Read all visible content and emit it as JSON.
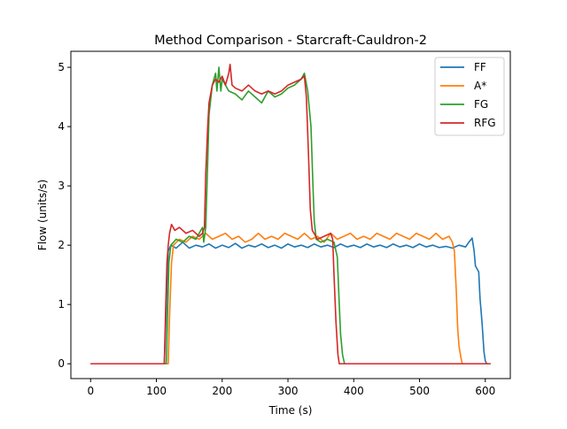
{
  "chart_data": {
    "type": "line",
    "title": "Method Comparison - Starcraft-Cauldron-2",
    "xlabel": "Time (s)",
    "ylabel": "Flow (units/s)",
    "xlim": [
      -30,
      638
    ],
    "ylim": [
      -0.25,
      5.27
    ],
    "xticks": [
      0,
      100,
      200,
      300,
      400,
      500,
      600
    ],
    "yticks": [
      0,
      1,
      2,
      3,
      4,
      5
    ],
    "grid": false,
    "legend_position": "top-right",
    "series": [
      {
        "name": "FF",
        "color": "#1f77b4",
        "points": [
          [
            0,
            0
          ],
          [
            112,
            0
          ],
          [
            114,
            0.6
          ],
          [
            116,
            1.3
          ],
          [
            118,
            1.9
          ],
          [
            122,
            2.0
          ],
          [
            130,
            1.95
          ],
          [
            140,
            2.05
          ],
          [
            150,
            1.95
          ],
          [
            160,
            2.0
          ],
          [
            170,
            1.97
          ],
          [
            180,
            2.02
          ],
          [
            190,
            1.95
          ],
          [
            200,
            2.0
          ],
          [
            210,
            1.96
          ],
          [
            220,
            2.03
          ],
          [
            230,
            1.95
          ],
          [
            240,
            2.0
          ],
          [
            250,
            1.97
          ],
          [
            260,
            2.02
          ],
          [
            270,
            1.96
          ],
          [
            280,
            2.0
          ],
          [
            290,
            1.95
          ],
          [
            300,
            2.02
          ],
          [
            310,
            1.97
          ],
          [
            320,
            2.0
          ],
          [
            330,
            1.96
          ],
          [
            340,
            2.02
          ],
          [
            350,
            1.97
          ],
          [
            360,
            2.0
          ],
          [
            370,
            1.96
          ],
          [
            380,
            2.02
          ],
          [
            390,
            1.97
          ],
          [
            400,
            2.0
          ],
          [
            410,
            1.96
          ],
          [
            420,
            2.02
          ],
          [
            430,
            1.97
          ],
          [
            440,
            2.0
          ],
          [
            450,
            1.96
          ],
          [
            460,
            2.02
          ],
          [
            470,
            1.97
          ],
          [
            480,
            2.0
          ],
          [
            490,
            1.96
          ],
          [
            500,
            2.02
          ],
          [
            510,
            1.97
          ],
          [
            520,
            2.0
          ],
          [
            530,
            1.96
          ],
          [
            540,
            1.98
          ],
          [
            550,
            1.95
          ],
          [
            560,
            2.0
          ],
          [
            570,
            1.97
          ],
          [
            575,
            2.05
          ],
          [
            580,
            2.12
          ],
          [
            583,
            1.9
          ],
          [
            585,
            1.65
          ],
          [
            590,
            1.55
          ],
          [
            592,
            1.1
          ],
          [
            595,
            0.7
          ],
          [
            598,
            0.2
          ],
          [
            600,
            0.05
          ],
          [
            602,
            0
          ],
          [
            608,
            0
          ]
        ]
      },
      {
        "name": "A*",
        "color": "#ff7f0e",
        "points": [
          [
            0,
            0
          ],
          [
            118,
            0
          ],
          [
            120,
            0.8
          ],
          [
            123,
            1.7
          ],
          [
            126,
            2.0
          ],
          [
            135,
            2.1
          ],
          [
            145,
            2.05
          ],
          [
            155,
            2.15
          ],
          [
            165,
            2.1
          ],
          [
            175,
            2.2
          ],
          [
            185,
            2.1
          ],
          [
            195,
            2.15
          ],
          [
            205,
            2.2
          ],
          [
            215,
            2.1
          ],
          [
            225,
            2.15
          ],
          [
            235,
            2.05
          ],
          [
            245,
            2.1
          ],
          [
            255,
            2.2
          ],
          [
            265,
            2.1
          ],
          [
            275,
            2.15
          ],
          [
            285,
            2.1
          ],
          [
            295,
            2.2
          ],
          [
            305,
            2.15
          ],
          [
            315,
            2.1
          ],
          [
            325,
            2.2
          ],
          [
            335,
            2.1
          ],
          [
            345,
            2.15
          ],
          [
            355,
            2.05
          ],
          [
            365,
            2.2
          ],
          [
            375,
            2.1
          ],
          [
            385,
            2.15
          ],
          [
            395,
            2.2
          ],
          [
            405,
            2.1
          ],
          [
            415,
            2.15
          ],
          [
            425,
            2.1
          ],
          [
            435,
            2.2
          ],
          [
            445,
            2.15
          ],
          [
            455,
            2.1
          ],
          [
            465,
            2.2
          ],
          [
            475,
            2.15
          ],
          [
            485,
            2.1
          ],
          [
            495,
            2.2
          ],
          [
            505,
            2.15
          ],
          [
            515,
            2.1
          ],
          [
            525,
            2.2
          ],
          [
            535,
            2.1
          ],
          [
            545,
            2.15
          ],
          [
            550,
            2.05
          ],
          [
            553,
            1.9
          ],
          [
            556,
            1.2
          ],
          [
            558,
            0.6
          ],
          [
            560,
            0.3
          ],
          [
            563,
            0.1
          ],
          [
            565,
            0
          ],
          [
            608,
            0
          ]
        ]
      },
      {
        "name": "FG",
        "color": "#2ca02c",
        "points": [
          [
            0,
            0
          ],
          [
            115,
            0
          ],
          [
            117,
            0.8
          ],
          [
            119,
            1.7
          ],
          [
            122,
            2.0
          ],
          [
            130,
            2.1
          ],
          [
            140,
            2.05
          ],
          [
            150,
            2.15
          ],
          [
            160,
            2.1
          ],
          [
            165,
            2.2
          ],
          [
            170,
            2.3
          ],
          [
            172,
            2.05
          ],
          [
            175,
            2.3
          ],
          [
            178,
            3.4
          ],
          [
            180,
            4.2
          ],
          [
            185,
            4.7
          ],
          [
            190,
            4.9
          ],
          [
            192,
            4.6
          ],
          [
            195,
            5.0
          ],
          [
            198,
            4.6
          ],
          [
            200,
            4.8
          ],
          [
            210,
            4.6
          ],
          [
            220,
            4.55
          ],
          [
            230,
            4.45
          ],
          [
            240,
            4.6
          ],
          [
            250,
            4.5
          ],
          [
            260,
            4.4
          ],
          [
            270,
            4.6
          ],
          [
            280,
            4.5
          ],
          [
            290,
            4.55
          ],
          [
            300,
            4.65
          ],
          [
            310,
            4.7
          ],
          [
            320,
            4.8
          ],
          [
            325,
            4.9
          ],
          [
            330,
            4.6
          ],
          [
            335,
            4.0
          ],
          [
            338,
            3.0
          ],
          [
            340,
            2.4
          ],
          [
            343,
            2.1
          ],
          [
            350,
            2.05
          ],
          [
            360,
            2.1
          ],
          [
            370,
            2.05
          ],
          [
            375,
            1.8
          ],
          [
            378,
            1.0
          ],
          [
            380,
            0.5
          ],
          [
            383,
            0.15
          ],
          [
            386,
            0
          ],
          [
            608,
            0
          ]
        ]
      },
      {
        "name": "RFG",
        "color": "#d62728",
        "points": [
          [
            0,
            0
          ],
          [
            112,
            0
          ],
          [
            114,
            0.9
          ],
          [
            116,
            1.7
          ],
          [
            118,
            2.0
          ],
          [
            120,
            2.2
          ],
          [
            123,
            2.35
          ],
          [
            128,
            2.25
          ],
          [
            135,
            2.3
          ],
          [
            145,
            2.2
          ],
          [
            155,
            2.25
          ],
          [
            165,
            2.15
          ],
          [
            170,
            2.2
          ],
          [
            173,
            2.3
          ],
          [
            175,
            3.2
          ],
          [
            178,
            4.0
          ],
          [
            180,
            4.4
          ],
          [
            185,
            4.7
          ],
          [
            190,
            4.8
          ],
          [
            195,
            4.75
          ],
          [
            200,
            4.85
          ],
          [
            205,
            4.7
          ],
          [
            210,
            4.9
          ],
          [
            212,
            5.05
          ],
          [
            215,
            4.7
          ],
          [
            220,
            4.65
          ],
          [
            230,
            4.6
          ],
          [
            240,
            4.7
          ],
          [
            250,
            4.6
          ],
          [
            260,
            4.55
          ],
          [
            270,
            4.6
          ],
          [
            280,
            4.55
          ],
          [
            290,
            4.6
          ],
          [
            300,
            4.7
          ],
          [
            310,
            4.75
          ],
          [
            320,
            4.8
          ],
          [
            325,
            4.85
          ],
          [
            328,
            4.5
          ],
          [
            331,
            3.6
          ],
          [
            334,
            2.6
          ],
          [
            337,
            2.25
          ],
          [
            345,
            2.1
          ],
          [
            355,
            2.15
          ],
          [
            365,
            2.2
          ],
          [
            368,
            2.1
          ],
          [
            370,
            1.5
          ],
          [
            373,
            0.7
          ],
          [
            376,
            0.15
          ],
          [
            378,
            0
          ],
          [
            608,
            0
          ]
        ]
      }
    ]
  }
}
